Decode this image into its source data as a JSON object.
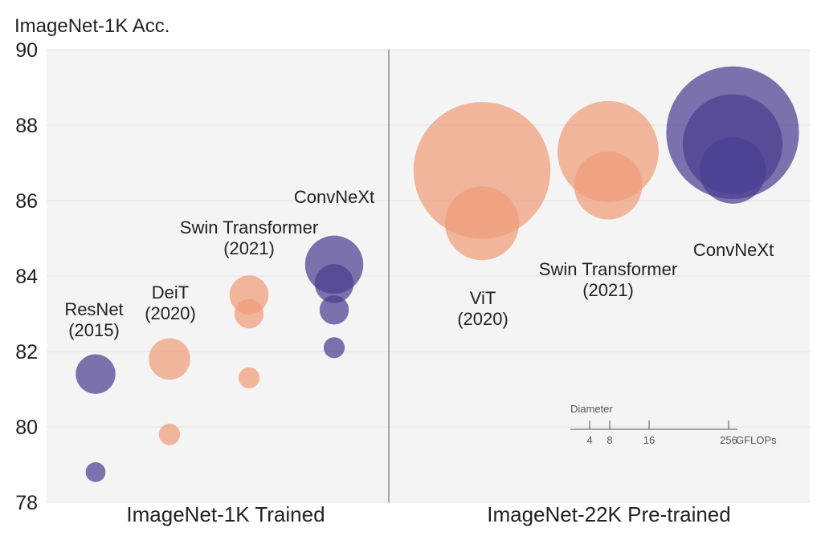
{
  "chart_data": {
    "type": "scatter",
    "title": "",
    "ylabel": "ImageNet-1K Acc.",
    "ylim": [
      78,
      90
    ],
    "yticks": [
      78,
      80,
      82,
      84,
      86,
      88,
      90
    ],
    "grid": true,
    "panels": [
      "ImageNet-1K Trained",
      "ImageNet-22K Pre-trained"
    ],
    "colors": {
      "convnext": "#4b3f91",
      "transformer": "#ee9d78",
      "panel_bg": "#f4f4f4",
      "grid": "#e0e0e0"
    },
    "series": [
      {
        "model": "resnet",
        "panel": 0,
        "color": "#4b3f91",
        "points": [
          {
            "y": 81.4,
            "gflops": 16
          },
          {
            "y": 78.8,
            "gflops": 4
          }
        ]
      },
      {
        "model": "deit",
        "panel": 0,
        "color": "#ee9d78",
        "points": [
          {
            "y": 81.8,
            "gflops": 17.5
          },
          {
            "y": 79.8,
            "gflops": 4.6
          }
        ]
      },
      {
        "model": "swin-1k",
        "panel": 0,
        "color": "#ee9d78",
        "points": [
          {
            "y": 83.5,
            "gflops": 15.4
          },
          {
            "y": 83.0,
            "gflops": 8.7
          },
          {
            "y": 81.3,
            "gflops": 4.5
          }
        ]
      },
      {
        "model": "convnext-1k",
        "panel": 0,
        "color": "#4b3f91",
        "points": [
          {
            "y": 84.3,
            "gflops": 34.4
          },
          {
            "y": 83.8,
            "gflops": 15.4
          },
          {
            "y": 83.1,
            "gflops": 8.7
          },
          {
            "y": 82.1,
            "gflops": 4.5
          }
        ]
      },
      {
        "model": "vit",
        "panel": 1,
        "color": "#ee9d78",
        "points": [
          {
            "y": 86.8,
            "gflops": 190.7
          },
          {
            "y": 85.4,
            "gflops": 55.5
          }
        ]
      },
      {
        "model": "swin-22k",
        "panel": 1,
        "color": "#ee9d78",
        "points": [
          {
            "y": 87.3,
            "gflops": 103.9
          },
          {
            "y": 86.4,
            "gflops": 47.0
          }
        ]
      },
      {
        "model": "convnext-22k",
        "panel": 1,
        "color": "#4b3f91",
        "points": [
          {
            "y": 87.8,
            "gflops": 179
          },
          {
            "y": 87.5,
            "gflops": 101
          },
          {
            "y": 86.8,
            "gflops": 45
          }
        ]
      }
    ],
    "annotations": [
      {
        "lines": [
          "ResNet",
          "(2015)"
        ]
      },
      {
        "lines": [
          "DeiT",
          "(2020)"
        ]
      },
      {
        "lines": [
          "Swin Transformer",
          "(2021)"
        ]
      },
      {
        "lines": [
          "ConvNeXt"
        ]
      },
      {
        "lines": [
          "ViT",
          "(2020)"
        ]
      },
      {
        "lines": [
          "Swin Transformer",
          "(2021)"
        ]
      },
      {
        "lines": [
          "ConvNeXt"
        ]
      }
    ],
    "size_legend": {
      "title": "Diameter",
      "ticks": [
        4,
        8,
        16,
        256
      ],
      "unit": "GFLOPs"
    }
  }
}
